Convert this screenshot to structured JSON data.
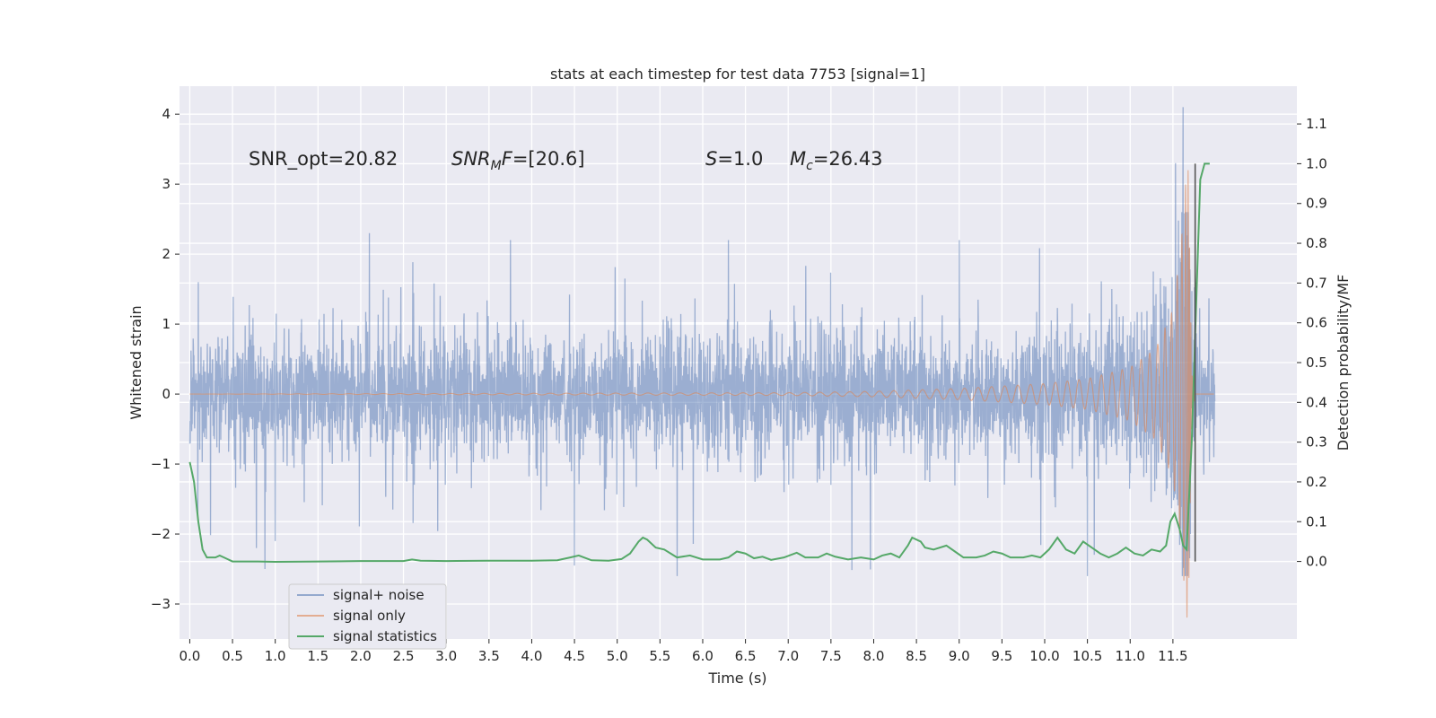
{
  "chart_data": {
    "type": "line",
    "title": "stats at each timestep for test data 7753 [signal=1]",
    "xlabel": "Time (s)",
    "ylabel": "Whitened strain",
    "y2label": "Detection probability/MF",
    "xlim": [
      -0.12,
      12.95
    ],
    "ylim": [
      -3.5,
      4.4
    ],
    "y2lim": [
      -0.195,
      1.195
    ],
    "xticks": [
      0.0,
      0.5,
      1.0,
      1.5,
      2.0,
      2.5,
      3.0,
      3.5,
      4.0,
      4.5,
      5.0,
      5.5,
      6.0,
      6.5,
      7.0,
      7.5,
      8.0,
      8.5,
      9.0,
      9.5,
      10.0,
      10.5,
      11.0,
      11.5
    ],
    "xtick_labels": [
      "0.0",
      "0.5",
      "1.0",
      "1.5",
      "2.0",
      "2.5",
      "3.0",
      "3.5",
      "4.0",
      "4.5",
      "5.0",
      "5.5",
      "6.0",
      "6.5",
      "7.0",
      "7.5",
      "8.0",
      "8.5",
      "9.0",
      "9.5",
      "10.0",
      "10.5",
      "11.0",
      "11.5"
    ],
    "yticks": [
      -3,
      -2,
      -1,
      0,
      1,
      2,
      3,
      4
    ],
    "ytick_labels": [
      "−3",
      "−2",
      "−1",
      "0",
      "1",
      "2",
      "3",
      "4"
    ],
    "y2ticks": [
      0.0,
      0.1,
      0.2,
      0.3,
      0.4,
      0.5,
      0.6,
      0.7,
      0.8,
      0.9,
      1.0,
      1.1
    ],
    "y2tick_labels": [
      "0.0",
      "0.1",
      "0.2",
      "0.3",
      "0.4",
      "0.5",
      "0.6",
      "0.7",
      "0.8",
      "0.9",
      "1.0",
      "1.1"
    ],
    "grid": true,
    "legend_position": "bottom-left",
    "annotations": [
      {
        "text": "SNR_opt=20.82",
        "x": 0.2,
        "y": 3.35
      },
      {
        "text": "SNR_MF=[20.6]",
        "x": 2.6,
        "y": 3.35
      },
      {
        "text": "S=1.0",
        "x": 5.6,
        "y": 3.35
      },
      {
        "text": "M_c=26.43",
        "x": 6.6,
        "y": 3.35
      }
    ],
    "series": [
      {
        "name": "signal+ noise",
        "color": "#4c72b0",
        "axis": "left",
        "x_range": [
          0.0,
          11.99
        ],
        "typical_amplitude": 1.0,
        "peaks": [
          {
            "x": 0.1,
            "y": 1.6
          },
          {
            "x": 0.78,
            "y": -2.2
          },
          {
            "x": 0.88,
            "y": -2.5
          },
          {
            "x": 1.0,
            "y": -2.1
          },
          {
            "x": 2.1,
            "y": 2.3
          },
          {
            "x": 3.75,
            "y": 2.2
          },
          {
            "x": 4.5,
            "y": -2.45
          },
          {
            "x": 5.7,
            "y": -2.6
          },
          {
            "x": 6.3,
            "y": 2.2
          },
          {
            "x": 9.0,
            "y": 2.2
          },
          {
            "x": 10.5,
            "y": -2.6
          },
          {
            "x": 11.53,
            "y": 3.3
          },
          {
            "x": 11.62,
            "y": 4.1
          },
          {
            "x": 11.65,
            "y": -2.6
          }
        ]
      },
      {
        "name": "signal only",
        "color": "#dd8452",
        "axis": "left",
        "merger_time": 11.68,
        "envelope": [
          {
            "x": 0.0,
            "y": 0.0
          },
          {
            "x": 7.0,
            "y": 0.02
          },
          {
            "x": 8.0,
            "y": 0.04
          },
          {
            "x": 9.0,
            "y": 0.08
          },
          {
            "x": 10.0,
            "y": 0.15
          },
          {
            "x": 10.5,
            "y": 0.22
          },
          {
            "x": 11.0,
            "y": 0.38
          },
          {
            "x": 11.3,
            "y": 0.65
          },
          {
            "x": 11.5,
            "y": 1.2
          },
          {
            "x": 11.6,
            "y": 2.2
          },
          {
            "x": 11.66,
            "y": 3.2
          },
          {
            "x": 11.68,
            "y": 3.2
          },
          {
            "x": 11.72,
            "y": 0.3
          },
          {
            "x": 11.76,
            "y": 0.0
          }
        ]
      },
      {
        "name": "signal statistics",
        "color": "#55a868",
        "axis": "right",
        "points": [
          {
            "x": 0.0,
            "y": 0.25
          },
          {
            "x": 0.05,
            "y": 0.2
          },
          {
            "x": 0.1,
            "y": 0.1
          },
          {
            "x": 0.15,
            "y": 0.03
          },
          {
            "x": 0.2,
            "y": 0.01
          },
          {
            "x": 0.3,
            "y": 0.01
          },
          {
            "x": 0.35,
            "y": 0.015
          },
          {
            "x": 0.4,
            "y": 0.01
          },
          {
            "x": 0.5,
            "y": 0.0
          },
          {
            "x": 0.8,
            "y": 0.0
          },
          {
            "x": 1.0,
            "y": -0.001
          },
          {
            "x": 1.5,
            "y": 0.0
          },
          {
            "x": 2.0,
            "y": 0.001
          },
          {
            "x": 2.5,
            "y": 0.001
          },
          {
            "x": 2.6,
            "y": 0.005
          },
          {
            "x": 2.7,
            "y": 0.002
          },
          {
            "x": 3.0,
            "y": 0.001
          },
          {
            "x": 3.5,
            "y": 0.002
          },
          {
            "x": 4.0,
            "y": 0.002
          },
          {
            "x": 4.3,
            "y": 0.003
          },
          {
            "x": 4.45,
            "y": 0.01
          },
          {
            "x": 4.55,
            "y": 0.015
          },
          {
            "x": 4.7,
            "y": 0.003
          },
          {
            "x": 4.9,
            "y": 0.002
          },
          {
            "x": 5.05,
            "y": 0.006
          },
          {
            "x": 5.15,
            "y": 0.02
          },
          {
            "x": 5.25,
            "y": 0.05
          },
          {
            "x": 5.3,
            "y": 0.06
          },
          {
            "x": 5.35,
            "y": 0.055
          },
          {
            "x": 5.45,
            "y": 0.035
          },
          {
            "x": 5.55,
            "y": 0.03
          },
          {
            "x": 5.7,
            "y": 0.01
          },
          {
            "x": 5.85,
            "y": 0.015
          },
          {
            "x": 6.0,
            "y": 0.005
          },
          {
            "x": 6.2,
            "y": 0.005
          },
          {
            "x": 6.3,
            "y": 0.01
          },
          {
            "x": 6.4,
            "y": 0.025
          },
          {
            "x": 6.5,
            "y": 0.02
          },
          {
            "x": 6.6,
            "y": 0.008
          },
          {
            "x": 6.7,
            "y": 0.012
          },
          {
            "x": 6.8,
            "y": 0.004
          },
          {
            "x": 6.95,
            "y": 0.01
          },
          {
            "x": 7.1,
            "y": 0.022
          },
          {
            "x": 7.2,
            "y": 0.01
          },
          {
            "x": 7.35,
            "y": 0.01
          },
          {
            "x": 7.45,
            "y": 0.02
          },
          {
            "x": 7.55,
            "y": 0.012
          },
          {
            "x": 7.7,
            "y": 0.005
          },
          {
            "x": 7.85,
            "y": 0.01
          },
          {
            "x": 8.0,
            "y": 0.005
          },
          {
            "x": 8.1,
            "y": 0.015
          },
          {
            "x": 8.2,
            "y": 0.02
          },
          {
            "x": 8.3,
            "y": 0.01
          },
          {
            "x": 8.4,
            "y": 0.04
          },
          {
            "x": 8.45,
            "y": 0.06
          },
          {
            "x": 8.55,
            "y": 0.05
          },
          {
            "x": 8.6,
            "y": 0.035
          },
          {
            "x": 8.7,
            "y": 0.03
          },
          {
            "x": 8.85,
            "y": 0.04
          },
          {
            "x": 8.95,
            "y": 0.025
          },
          {
            "x": 9.05,
            "y": 0.01
          },
          {
            "x": 9.2,
            "y": 0.01
          },
          {
            "x": 9.3,
            "y": 0.015
          },
          {
            "x": 9.4,
            "y": 0.025
          },
          {
            "x": 9.5,
            "y": 0.02
          },
          {
            "x": 9.6,
            "y": 0.01
          },
          {
            "x": 9.75,
            "y": 0.01
          },
          {
            "x": 9.85,
            "y": 0.015
          },
          {
            "x": 9.95,
            "y": 0.01
          },
          {
            "x": 10.05,
            "y": 0.03
          },
          {
            "x": 10.15,
            "y": 0.06
          },
          {
            "x": 10.25,
            "y": 0.03
          },
          {
            "x": 10.35,
            "y": 0.02
          },
          {
            "x": 10.45,
            "y": 0.05
          },
          {
            "x": 10.55,
            "y": 0.035
          },
          {
            "x": 10.65,
            "y": 0.02
          },
          {
            "x": 10.75,
            "y": 0.01
          },
          {
            "x": 10.85,
            "y": 0.02
          },
          {
            "x": 10.95,
            "y": 0.035
          },
          {
            "x": 11.05,
            "y": 0.02
          },
          {
            "x": 11.15,
            "y": 0.015
          },
          {
            "x": 11.25,
            "y": 0.03
          },
          {
            "x": 11.35,
            "y": 0.025
          },
          {
            "x": 11.42,
            "y": 0.04
          },
          {
            "x": 11.47,
            "y": 0.1
          },
          {
            "x": 11.52,
            "y": 0.12
          },
          {
            "x": 11.58,
            "y": 0.08
          },
          {
            "x": 11.62,
            "y": 0.04
          },
          {
            "x": 11.66,
            "y": 0.03
          },
          {
            "x": 11.72,
            "y": 0.3
          },
          {
            "x": 11.78,
            "y": 0.7
          },
          {
            "x": 11.82,
            "y": 0.96
          },
          {
            "x": 11.87,
            "y": 1.0
          },
          {
            "x": 11.93,
            "y": 1.0
          }
        ]
      }
    ]
  }
}
